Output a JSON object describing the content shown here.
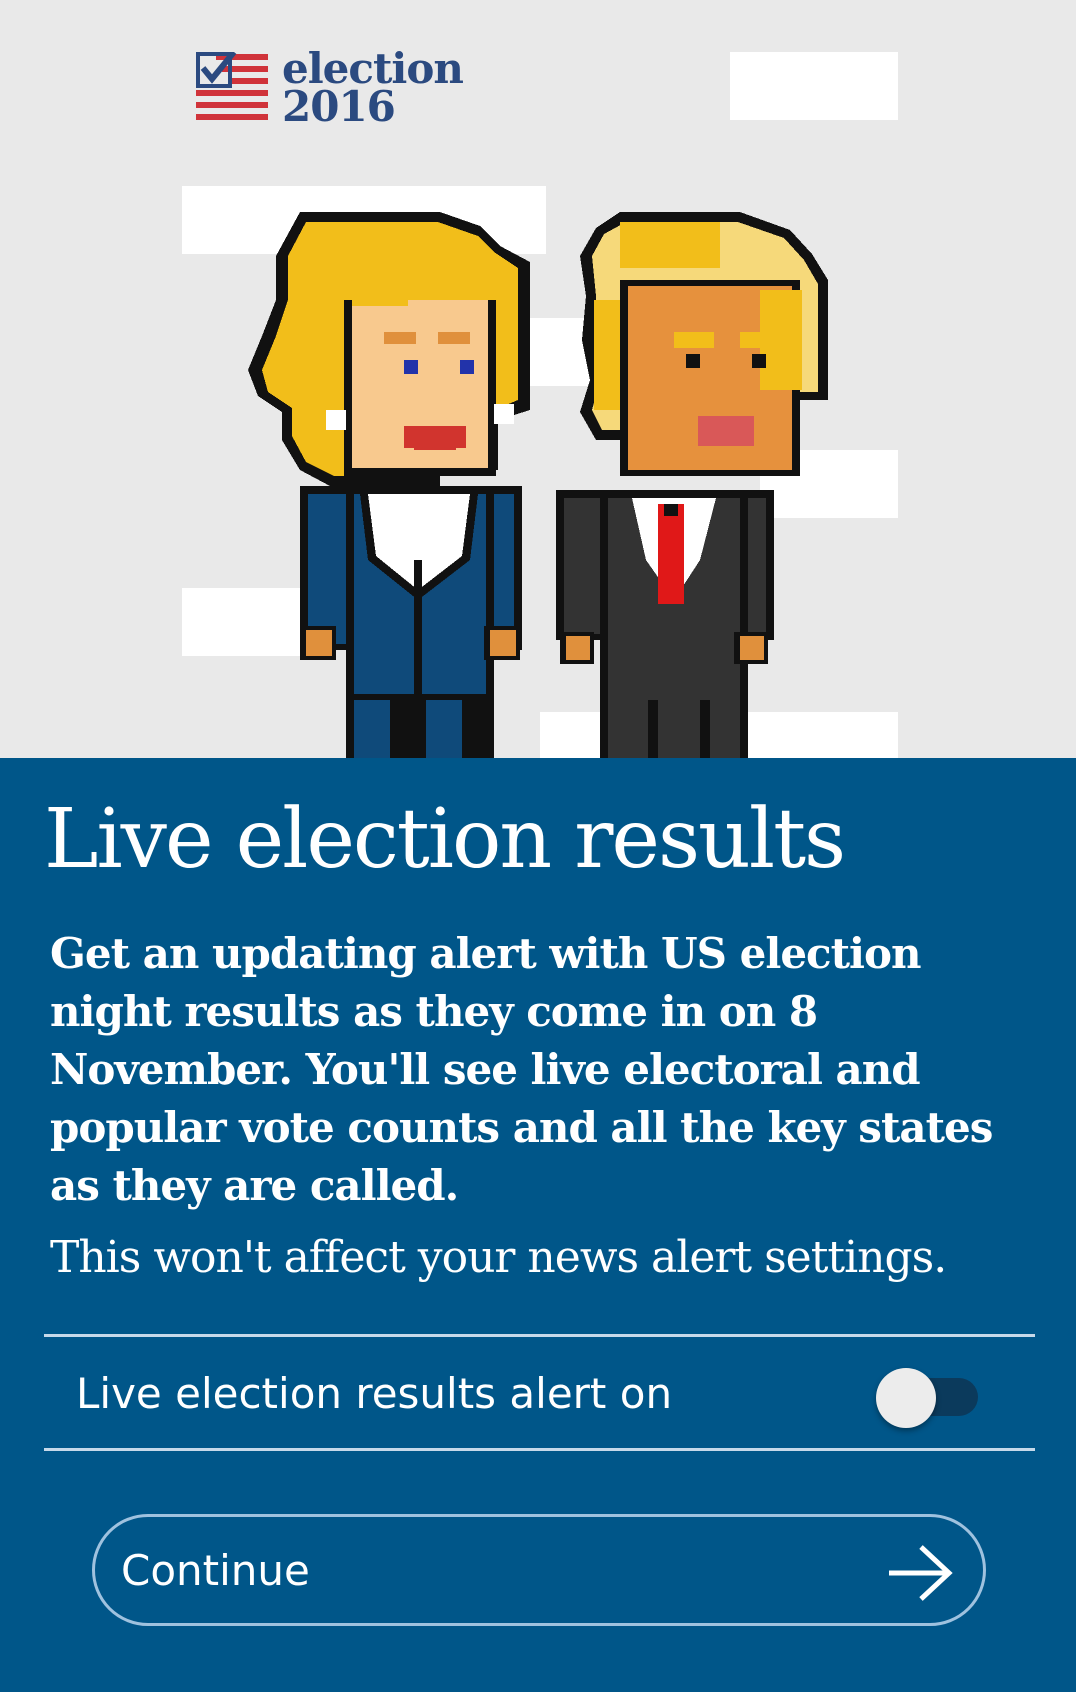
{
  "logo": {
    "line1": "election",
    "line2": "2016",
    "icon": "checkbox-flag-icon"
  },
  "hero": {
    "illustration": "pixel-candidates-illustration"
  },
  "main": {
    "title": "Live election results",
    "description": "Get an updating alert with US election night results as they come in on 8 November. You'll see live electoral and popular vote counts and all the key states as they are called.",
    "note": "This won't affect your news alert settings."
  },
  "toggle": {
    "label": "Live election results alert on",
    "checked": false
  },
  "continue_button": {
    "label": "Continue",
    "icon": "arrow-right-icon"
  },
  "colors": {
    "background": "#005689",
    "hero_background": "#e9e9e9",
    "logo_blue": "#2b4a80",
    "logo_red": "#d0333a"
  }
}
